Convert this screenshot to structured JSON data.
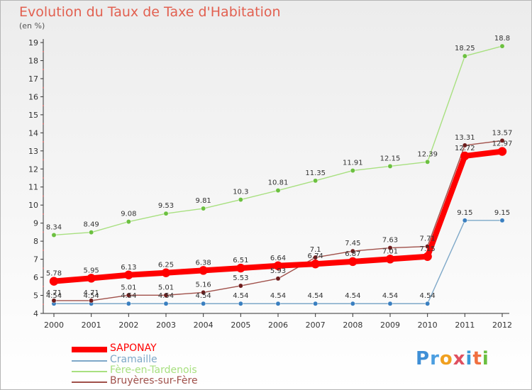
{
  "title": "Evolution du Taux de Taxe d'Habitation",
  "unit_label": "(en %)",
  "logo": {
    "letters": [
      "P",
      "r",
      "o",
      "x",
      "i",
      "t",
      "i"
    ],
    "colors": [
      "#3f8fd6",
      "#4b9ee0",
      "#f0a020",
      "#e05060",
      "#3a9ad9",
      "#f07040",
      "#6abf40"
    ]
  },
  "chart_data": {
    "type": "line",
    "title": "Evolution du Taux de Taxe d'Habitation",
    "ylabel": "(en %)",
    "xlabel": "",
    "x": [
      "2000",
      "2001",
      "2002",
      "2003",
      "2004",
      "2005",
      "2006",
      "2007",
      "2008",
      "2009",
      "2010",
      "2011",
      "2012"
    ],
    "ylim": [
      4,
      19
    ],
    "yticks": [
      4,
      5,
      6,
      7,
      8,
      9,
      10,
      11,
      12,
      13,
      14,
      15,
      16,
      17,
      18,
      19
    ],
    "grid": false,
    "legend_position": "bottom-left",
    "series": [
      {
        "name": "SAPONAY",
        "color": "#ff0000",
        "emphasis": true,
        "values": [
          5.78,
          5.95,
          6.13,
          6.25,
          6.38,
          6.51,
          6.64,
          6.74,
          6.87,
          7.01,
          7.15,
          12.72,
          12.97
        ],
        "labels": [
          "5.78",
          "5.95",
          "6.13",
          "6.25",
          "6.38",
          "6.51",
          "6.64",
          "6.74",
          "6.87",
          "7.01",
          "7.15",
          "12.72",
          "12.97"
        ]
      },
      {
        "name": "Cramaille",
        "color": "#7ea8c8",
        "marker": "#3a7fc0",
        "values": [
          4.54,
          4.54,
          4.54,
          4.54,
          4.54,
          4.54,
          4.54,
          4.54,
          4.54,
          4.54,
          4.54,
          9.15,
          9.15
        ],
        "labels": [
          "4.54",
          "4.54",
          "4.54",
          "4.54",
          "4.54",
          "4.54",
          "4.54",
          "4.54",
          "4.54",
          "4.54",
          "4.54",
          "9.15",
          "9.15"
        ]
      },
      {
        "name": "Fère-en-Tardenois",
        "color": "#a8e080",
        "marker": "#6cc040",
        "values": [
          8.34,
          8.49,
          9.08,
          9.53,
          9.81,
          10.3,
          10.81,
          11.35,
          11.91,
          12.15,
          12.39,
          18.25,
          18.8
        ],
        "labels": [
          "8.34",
          "8.49",
          "9.08",
          "9.53",
          "9.81",
          "10.3",
          "10.81",
          "11.35",
          "11.91",
          "12.15",
          "12.39",
          "18.25",
          "18.8"
        ]
      },
      {
        "name": "Bruyères-sur-Fère",
        "color": "#a0504a",
        "marker": "#6e1d1d",
        "values": [
          4.71,
          4.71,
          5.01,
          5.01,
          5.16,
          5.53,
          5.93,
          7.1,
          7.45,
          7.63,
          7.71,
          13.31,
          13.57
        ],
        "labels": [
          "4.71",
          "4.71",
          "5.01",
          "5.01",
          "5.16",
          "5.53",
          "5.93",
          "7.1",
          "7.45",
          "7.63",
          "7.71",
          "13.31",
          "13.57"
        ]
      }
    ]
  }
}
